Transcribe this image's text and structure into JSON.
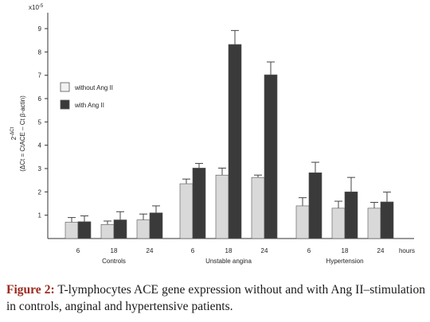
{
  "chart_data": {
    "type": "bar",
    "ylabel_line1": "2",
    "ylabel_sup": "-ΔCt",
    "ylabel_line2": "(ΔCt = CtACE – Ct β-actin)",
    "scale_note": "x10",
    "scale_exp": "-5",
    "ylim": [
      0,
      10
    ],
    "yticks": [
      "1",
      "2",
      "3",
      "4",
      "5",
      "6",
      "7",
      "8",
      "9"
    ],
    "x_unit": "hours",
    "groups": [
      {
        "name": "Controls",
        "times": [
          "6",
          "18",
          "24"
        ],
        "without": [
          0.7,
          0.6,
          0.8
        ],
        "without_err": [
          0.2,
          0.15,
          0.25
        ],
        "with": [
          0.72,
          0.8,
          1.1
        ],
        "with_err": [
          0.25,
          0.35,
          0.3
        ]
      },
      {
        "name": "Unstable angina",
        "times": [
          "6",
          "18",
          "24"
        ],
        "without": [
          2.35,
          2.72,
          2.62
        ],
        "without_err": [
          0.2,
          0.3,
          0.1
        ],
        "with": [
          3.02,
          8.32,
          7.02
        ],
        "with_err": [
          0.2,
          0.6,
          0.55
        ]
      },
      {
        "name": "Hypertension",
        "times": [
          "6",
          "18",
          "24"
        ],
        "without": [
          1.4,
          1.3,
          1.3
        ],
        "without_err": [
          0.35,
          0.3,
          0.25
        ],
        "with": [
          2.82,
          2.0,
          1.57
        ],
        "with_err": [
          0.45,
          0.62,
          0.42
        ]
      }
    ],
    "legend": [
      "without  Ang II",
      "with Ang II"
    ],
    "colors": {
      "without": "#d9d9d9",
      "with": "#3a3a3a",
      "axis": "#333333"
    }
  },
  "caption": {
    "label": "Figure 2:",
    "text": " T-lymphocytes ACE gene expression without and with Ang II–stimulation in controls, anginal and hypertensive patients."
  }
}
